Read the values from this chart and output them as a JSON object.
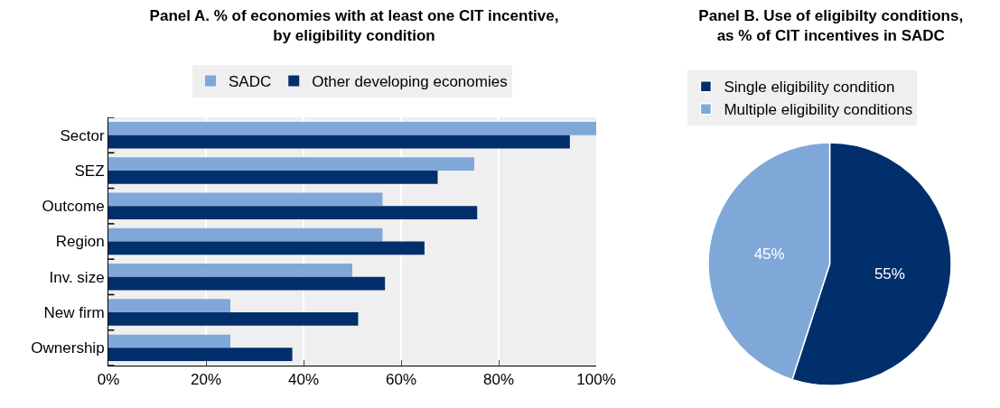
{
  "chart_data": [
    {
      "type": "bar",
      "orientation": "horizontal",
      "title": "Panel A. % of economies with at least one CIT incentive,\nby eligibility condition",
      "categories": [
        "Sector",
        "SEZ",
        "Outcome",
        "Region",
        "Inv. size",
        "New firm",
        "Ownership"
      ],
      "series": [
        {
          "name": "SADC",
          "color": "#7fa8d9",
          "values": [
            100,
            75,
            56.2,
            56.2,
            50,
            25,
            25
          ]
        },
        {
          "name": "Other developing economies",
          "color": "#002f6c",
          "values": [
            94.6,
            67.5,
            75.6,
            64.8,
            56.7,
            51.2,
            37.7
          ]
        }
      ],
      "xlim": [
        0,
        100
      ],
      "xticks": [
        {
          "value": 0,
          "label": "0%"
        },
        {
          "value": 20,
          "label": "20%"
        },
        {
          "value": 40,
          "label": "40%"
        },
        {
          "value": 60,
          "label": "60%"
        },
        {
          "value": 80,
          "label": "80%"
        },
        {
          "value": 100,
          "label": "100%"
        }
      ],
      "grid": "x",
      "legend": "top"
    },
    {
      "type": "pie",
      "title": "Panel B. Use of eligibilty conditions,\nas % of CIT incentives in SADC",
      "categories": [
        "Single eligibility condition",
        "Multiple eligibility conditions"
      ],
      "values": [
        55,
        45
      ],
      "colors": [
        "#002f6c",
        "#7fa8d9"
      ],
      "value_labels": [
        "55%",
        "45%"
      ],
      "legend": "top"
    }
  ]
}
